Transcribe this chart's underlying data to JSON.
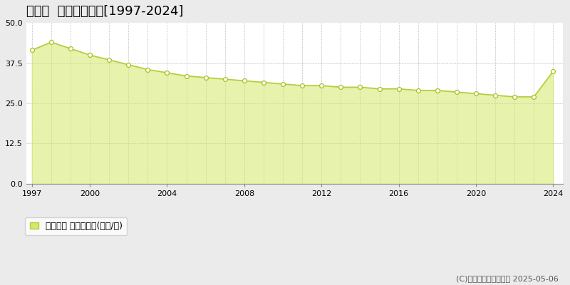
{
  "title": "開成町  基準地価推移[1997-2024]",
  "years": [
    1997,
    1998,
    1999,
    2000,
    2001,
    2002,
    2003,
    2004,
    2005,
    2006,
    2007,
    2008,
    2009,
    2010,
    2011,
    2012,
    2013,
    2014,
    2015,
    2016,
    2017,
    2018,
    2019,
    2020,
    2021,
    2022,
    2023,
    2024
  ],
  "values": [
    41.5,
    44.0,
    42.0,
    40.0,
    38.5,
    37.0,
    35.5,
    34.5,
    33.5,
    33.0,
    32.5,
    32.0,
    31.5,
    31.0,
    30.5,
    30.5,
    30.0,
    30.0,
    29.5,
    29.5,
    29.0,
    29.0,
    28.5,
    28.0,
    27.5,
    27.0,
    27.0,
    35.0
  ],
  "fill_color": "#d4e96b",
  "fill_alpha": 0.55,
  "line_color": "#b5cc3a",
  "marker_facecolor": "#ffffff",
  "marker_edgecolor": "#a8c020",
  "background_color": "#ebebeb",
  "plot_bg_color": "#ffffff",
  "grid_color": "#aaaaaa",
  "border_color": "#cccccc",
  "ylim": [
    0,
    50
  ],
  "yticks": [
    0,
    12.5,
    25,
    37.5,
    50
  ],
  "xtick_positions": [
    1997,
    2000,
    2004,
    2008,
    2012,
    2016,
    2020,
    2024
  ],
  "xtick_labels": [
    "1997",
    "2000",
    "2004",
    "2008",
    "2012",
    "2016",
    "2020",
    "2024"
  ],
  "legend_label": "基準地価 平均嵪単価(万円/嵪)",
  "copyright_text": "(C)土地価格ドットコム 2025-05-06",
  "title_fontsize": 13,
  "tick_fontsize": 8,
  "legend_fontsize": 9,
  "copyright_fontsize": 8
}
